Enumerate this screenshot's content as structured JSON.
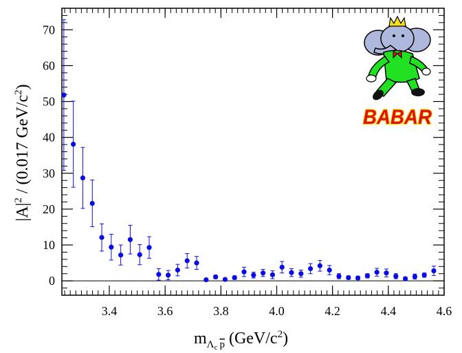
{
  "chart_data": {
    "type": "scatter",
    "title": "",
    "xlabel": {
      "base": "m",
      "sub_lambda": "Λ",
      "sub_c": "c",
      "sub_pbar": "p",
      "units": "(GeV/c",
      "units_sup": "2",
      "units_close": ")"
    },
    "ylabel": {
      "abs": "|A|",
      "sup": "2",
      "rest": " / (0.017 GeV/c",
      "rest_sup": "2",
      "close": ")"
    },
    "xlim": [
      3.23,
      4.6
    ],
    "ylim": [
      -4,
      76
    ],
    "x_ticks": [
      "3.4",
      "3.6",
      "3.8",
      "4.0",
      "4.2",
      "4.4",
      "4.6"
    ],
    "x_tick_values": [
      3.4,
      3.6,
      3.8,
      4.0,
      4.2,
      4.4,
      4.6
    ],
    "y_ticks": [
      "0",
      "10",
      "20",
      "30",
      "40",
      "50",
      "60",
      "70"
    ],
    "y_tick_values": [
      0,
      10,
      20,
      30,
      40,
      50,
      60,
      70
    ],
    "reference_line_y": 0,
    "series": [
      {
        "name": "data",
        "color": "#0a0ae6",
        "points": [
          {
            "x": 3.237,
            "y": 51.8,
            "err": 21.0
          },
          {
            "x": 3.271,
            "y": 38.1,
            "err": 12.0
          },
          {
            "x": 3.305,
            "y": 28.7,
            "err": 8.5
          },
          {
            "x": 3.339,
            "y": 21.6,
            "err": 6.5
          },
          {
            "x": 3.373,
            "y": 12.1,
            "err": 3.8
          },
          {
            "x": 3.407,
            "y": 9.4,
            "err": 3.6
          },
          {
            "x": 3.441,
            "y": 7.2,
            "err": 2.8
          },
          {
            "x": 3.475,
            "y": 11.5,
            "err": 4.0
          },
          {
            "x": 3.509,
            "y": 7.3,
            "err": 2.8
          },
          {
            "x": 3.543,
            "y": 9.3,
            "err": 3.0
          },
          {
            "x": 3.577,
            "y": 1.8,
            "err": 1.6
          },
          {
            "x": 3.611,
            "y": 1.6,
            "err": 1.3
          },
          {
            "x": 3.645,
            "y": 3.0,
            "err": 1.6
          },
          {
            "x": 3.679,
            "y": 5.6,
            "err": 2.0
          },
          {
            "x": 3.713,
            "y": 5.0,
            "err": 1.8
          },
          {
            "x": 3.747,
            "y": 0.3,
            "err": 0.0
          },
          {
            "x": 3.781,
            "y": 1.1,
            "err": 0.5
          },
          {
            "x": 3.815,
            "y": 0.4,
            "err": 0.0
          },
          {
            "x": 3.849,
            "y": 0.9,
            "err": 0.5
          },
          {
            "x": 3.883,
            "y": 2.5,
            "err": 1.3
          },
          {
            "x": 3.917,
            "y": 1.6,
            "err": 0.8
          },
          {
            "x": 3.951,
            "y": 2.2,
            "err": 1.0
          },
          {
            "x": 3.985,
            "y": 1.7,
            "err": 1.1
          },
          {
            "x": 4.019,
            "y": 3.8,
            "err": 1.6
          },
          {
            "x": 4.053,
            "y": 2.3,
            "err": 1.1
          },
          {
            "x": 4.087,
            "y": 2.0,
            "err": 1.0
          },
          {
            "x": 4.121,
            "y": 3.4,
            "err": 1.4
          },
          {
            "x": 4.155,
            "y": 4.2,
            "err": 1.5
          },
          {
            "x": 4.189,
            "y": 3.0,
            "err": 1.3
          },
          {
            "x": 4.223,
            "y": 1.3,
            "err": 0.7
          },
          {
            "x": 4.257,
            "y": 0.9,
            "err": 0.5
          },
          {
            "x": 4.291,
            "y": 0.8,
            "err": 0.5
          },
          {
            "x": 4.325,
            "y": 1.4,
            "err": 0.6
          },
          {
            "x": 4.359,
            "y": 2.4,
            "err": 1.1
          },
          {
            "x": 4.393,
            "y": 2.2,
            "err": 1.1
          },
          {
            "x": 4.427,
            "y": 1.3,
            "err": 0.7
          },
          {
            "x": 4.461,
            "y": 0.6,
            "err": 0.4
          },
          {
            "x": 4.495,
            "y": 1.2,
            "err": 0.7
          },
          {
            "x": 4.529,
            "y": 1.6,
            "err": 0.6
          },
          {
            "x": 4.563,
            "y": 2.8,
            "err": 1.3
          }
        ]
      }
    ]
  },
  "logo": {
    "text": "BABAR",
    "icon": "babar-elephant-icon",
    "colors": {
      "suit": "#22e022",
      "skin": "#aeb8dc",
      "crown": "#f5e21a",
      "text_fill": "#e01010",
      "text_outline": "#f5e21a"
    }
  }
}
